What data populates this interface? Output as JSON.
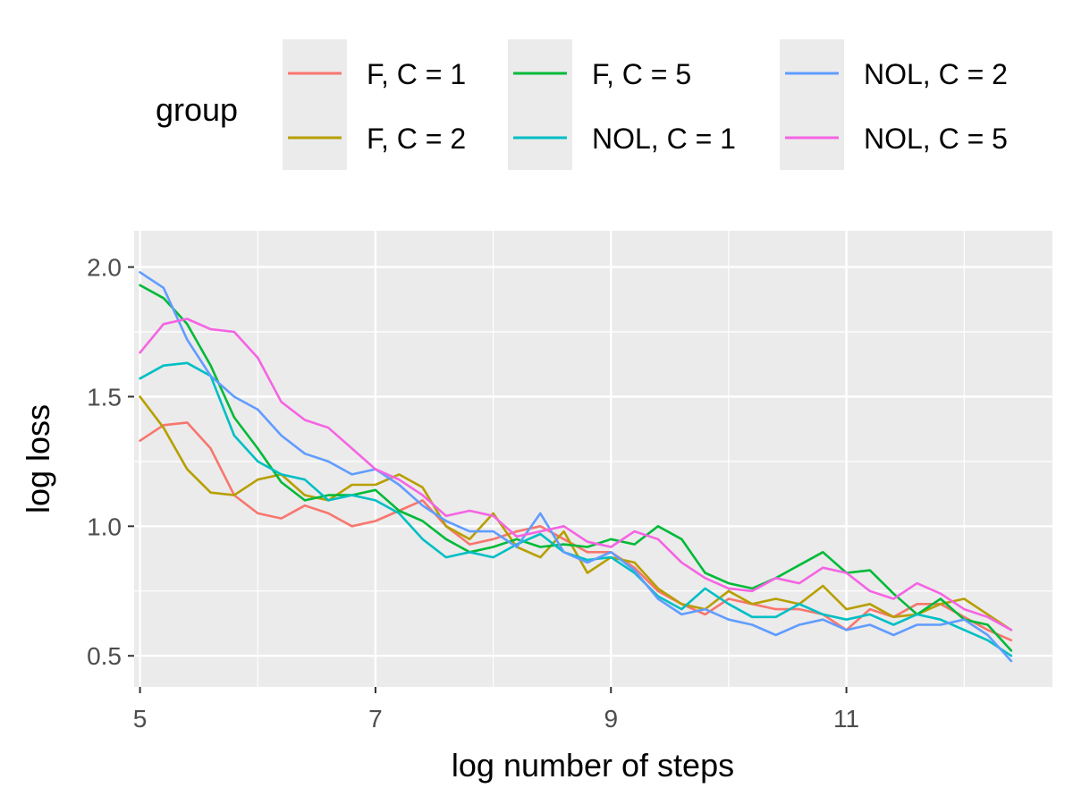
{
  "chart_data": {
    "type": "line",
    "title": "",
    "xlabel": "log number of steps",
    "ylabel": "log loss",
    "xlim": [
      4.95,
      12.75
    ],
    "ylim": [
      0.38,
      2.14
    ],
    "xticks": [
      5,
      7,
      9,
      11
    ],
    "xtick_labels": [
      "5",
      "7",
      "9",
      "11"
    ],
    "yticks": [
      0.5,
      1.0,
      1.5,
      2.0
    ],
    "ytick_labels": [
      "0.5",
      "1.0",
      "1.5",
      "2.0"
    ],
    "grid": true,
    "legend": {
      "title": "group",
      "position": "top",
      "entries": [
        "F, C = 1",
        "F, C = 2",
        "F, C = 5",
        "NOL, C = 1",
        "NOL, C = 2",
        "NOL, C = 5"
      ]
    },
    "series": [
      {
        "name": "F, C = 1",
        "color": "#F8766D",
        "x": [
          5,
          5.2,
          5.4,
          5.6,
          5.8,
          6,
          6.2,
          6.4,
          6.6,
          6.8,
          7,
          7.2,
          7.4,
          7.6,
          7.8,
          8,
          8.2,
          8.4,
          8.6,
          8.8,
          9,
          9.2,
          9.4,
          9.6,
          9.8,
          10,
          10.2,
          10.4,
          10.6,
          10.8,
          11,
          11.2,
          11.4,
          11.6,
          11.8,
          12,
          12.2,
          12.4
        ],
        "y": [
          1.33,
          1.39,
          1.4,
          1.3,
          1.12,
          1.05,
          1.03,
          1.08,
          1.05,
          1.0,
          1.02,
          1.06,
          1.1,
          1.0,
          0.93,
          0.95,
          0.98,
          1.0,
          0.95,
          0.9,
          0.9,
          0.84,
          0.75,
          0.7,
          0.66,
          0.72,
          0.7,
          0.68,
          0.68,
          0.66,
          0.6,
          0.68,
          0.65,
          0.7,
          0.7,
          0.65,
          0.6,
          0.56
        ]
      },
      {
        "name": "F, C = 2",
        "color": "#B79F00",
        "x": [
          5,
          5.2,
          5.4,
          5.6,
          5.8,
          6,
          6.2,
          6.4,
          6.6,
          6.8,
          7,
          7.2,
          7.4,
          7.6,
          7.8,
          8,
          8.2,
          8.4,
          8.6,
          8.8,
          9,
          9.2,
          9.4,
          9.6,
          9.8,
          10,
          10.2,
          10.4,
          10.6,
          10.8,
          11,
          11.2,
          11.4,
          11.6,
          11.8,
          12,
          12.2,
          12.4
        ],
        "y": [
          1.5,
          1.38,
          1.22,
          1.13,
          1.12,
          1.18,
          1.2,
          1.12,
          1.1,
          1.16,
          1.16,
          1.2,
          1.15,
          1.0,
          0.95,
          1.05,
          0.92,
          0.88,
          0.98,
          0.82,
          0.88,
          0.86,
          0.76,
          0.7,
          0.68,
          0.75,
          0.7,
          0.72,
          0.7,
          0.77,
          0.68,
          0.7,
          0.65,
          0.66,
          0.7,
          0.72,
          0.66,
          0.6
        ]
      },
      {
        "name": "F, C = 5",
        "color": "#00BA38",
        "x": [
          5,
          5.2,
          5.4,
          5.6,
          5.8,
          6,
          6.2,
          6.4,
          6.6,
          6.8,
          7,
          7.2,
          7.4,
          7.6,
          7.8,
          8,
          8.2,
          8.4,
          8.6,
          8.8,
          9,
          9.2,
          9.4,
          9.6,
          9.8,
          10,
          10.2,
          10.4,
          10.6,
          10.8,
          11,
          11.2,
          11.4,
          11.6,
          11.8,
          12,
          12.2,
          12.4
        ],
        "y": [
          1.93,
          1.88,
          1.78,
          1.62,
          1.42,
          1.3,
          1.17,
          1.1,
          1.12,
          1.12,
          1.14,
          1.06,
          1.02,
          0.95,
          0.9,
          0.92,
          0.95,
          0.92,
          0.93,
          0.92,
          0.95,
          0.93,
          1.0,
          0.95,
          0.82,
          0.78,
          0.76,
          0.8,
          0.85,
          0.9,
          0.82,
          0.83,
          0.74,
          0.66,
          0.72,
          0.64,
          0.62,
          0.52
        ]
      },
      {
        "name": "NOL, C = 1",
        "color": "#00BFC4",
        "x": [
          5,
          5.2,
          5.4,
          5.6,
          5.8,
          6,
          6.2,
          6.4,
          6.6,
          6.8,
          7,
          7.2,
          7.4,
          7.6,
          7.8,
          8,
          8.2,
          8.4,
          8.6,
          8.8,
          9,
          9.2,
          9.4,
          9.6,
          9.8,
          10,
          10.2,
          10.4,
          10.6,
          10.8,
          11,
          11.2,
          11.4,
          11.6,
          11.8,
          12,
          12.2,
          12.4
        ],
        "y": [
          1.57,
          1.62,
          1.63,
          1.58,
          1.35,
          1.25,
          1.2,
          1.18,
          1.1,
          1.12,
          1.1,
          1.05,
          0.95,
          0.88,
          0.9,
          0.88,
          0.93,
          0.97,
          0.9,
          0.87,
          0.88,
          0.82,
          0.73,
          0.68,
          0.76,
          0.7,
          0.65,
          0.65,
          0.7,
          0.66,
          0.64,
          0.66,
          0.62,
          0.66,
          0.64,
          0.6,
          0.56,
          0.5
        ]
      },
      {
        "name": "NOL, C = 2",
        "color": "#619CFF",
        "x": [
          5,
          5.2,
          5.4,
          5.6,
          5.8,
          6,
          6.2,
          6.4,
          6.6,
          6.8,
          7,
          7.2,
          7.4,
          7.6,
          7.8,
          8,
          8.2,
          8.4,
          8.6,
          8.8,
          9,
          9.2,
          9.4,
          9.6,
          9.8,
          10,
          10.2,
          10.4,
          10.6,
          10.8,
          11,
          11.2,
          11.4,
          11.6,
          11.8,
          12,
          12.2,
          12.4
        ],
        "y": [
          1.98,
          1.92,
          1.72,
          1.58,
          1.5,
          1.45,
          1.35,
          1.28,
          1.25,
          1.2,
          1.22,
          1.16,
          1.08,
          1.02,
          0.98,
          0.98,
          0.92,
          1.05,
          0.9,
          0.86,
          0.9,
          0.83,
          0.72,
          0.66,
          0.68,
          0.64,
          0.62,
          0.58,
          0.62,
          0.64,
          0.6,
          0.62,
          0.58,
          0.62,
          0.62,
          0.64,
          0.58,
          0.48
        ]
      },
      {
        "name": "NOL, C = 5",
        "color": "#F564E3",
        "x": [
          5,
          5.2,
          5.4,
          5.6,
          5.8,
          6,
          6.2,
          6.4,
          6.6,
          6.8,
          7,
          7.2,
          7.4,
          7.6,
          7.8,
          8,
          8.2,
          8.4,
          8.6,
          8.8,
          9,
          9.2,
          9.4,
          9.6,
          9.8,
          10,
          10.2,
          10.4,
          10.6,
          10.8,
          11,
          11.2,
          11.4,
          11.6,
          11.8,
          12,
          12.2,
          12.4
        ],
        "y": [
          1.67,
          1.78,
          1.8,
          1.76,
          1.75,
          1.65,
          1.48,
          1.41,
          1.38,
          1.3,
          1.22,
          1.18,
          1.12,
          1.04,
          1.06,
          1.04,
          0.96,
          0.98,
          1.0,
          0.94,
          0.92,
          0.98,
          0.95,
          0.86,
          0.8,
          0.76,
          0.75,
          0.8,
          0.78,
          0.84,
          0.82,
          0.75,
          0.72,
          0.78,
          0.74,
          0.68,
          0.65,
          0.6
        ]
      }
    ]
  }
}
